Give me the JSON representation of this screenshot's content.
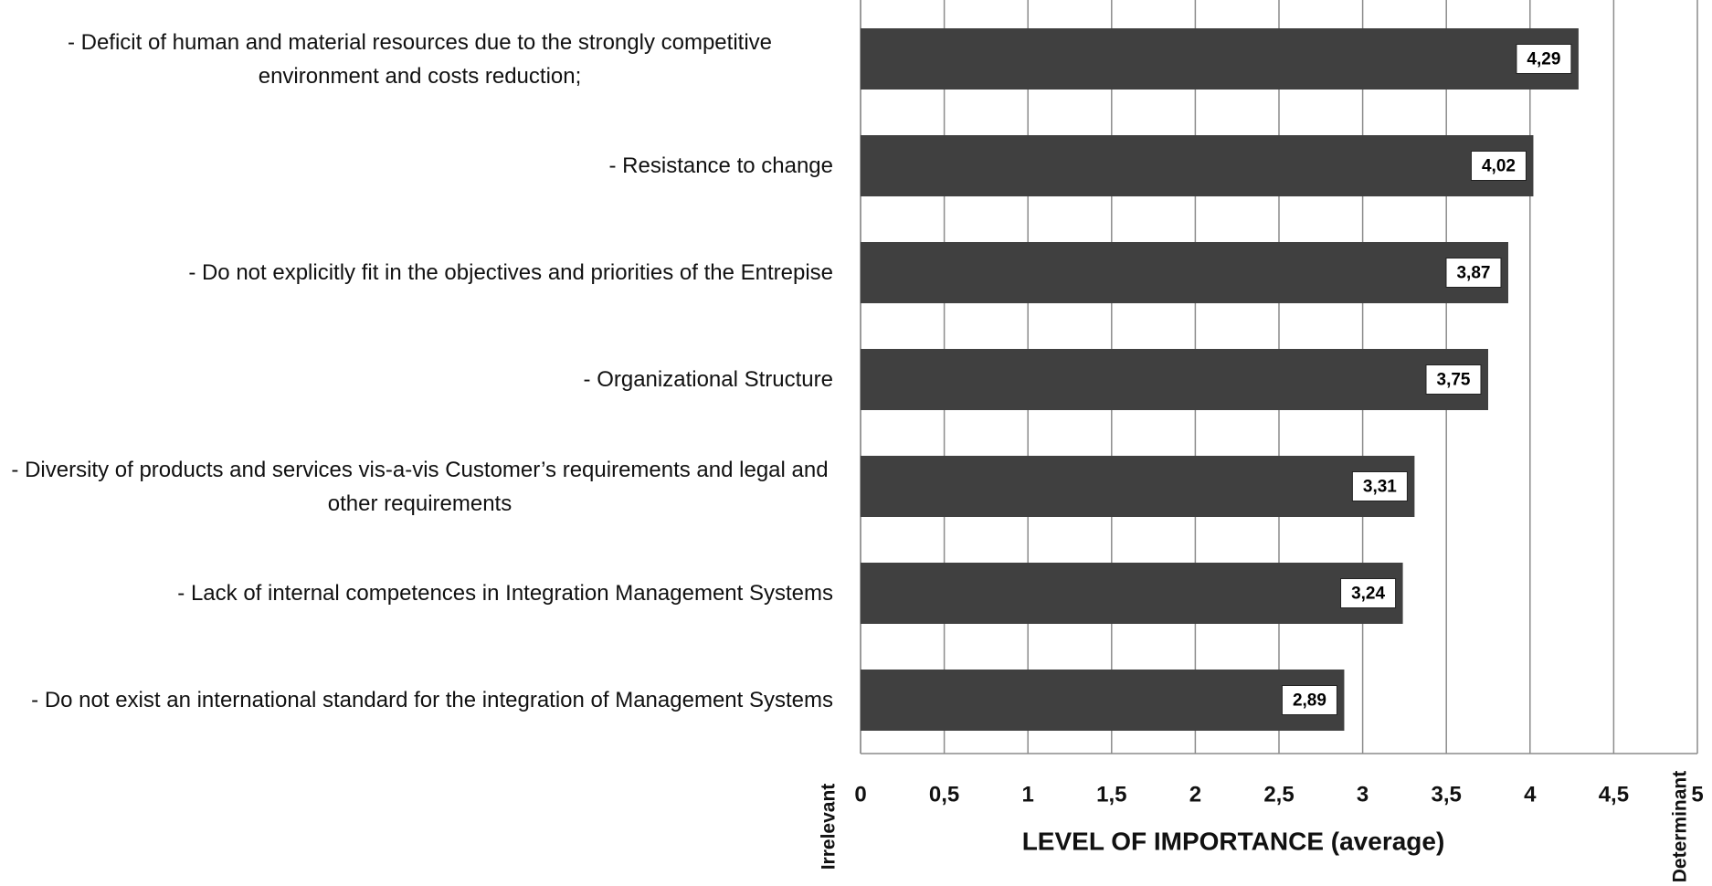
{
  "chart_data": {
    "type": "barh",
    "categories": [
      "- Deficit of human and material resources due to the strongly competitive environment and costs reduction;",
      "- Resistance to change",
      "- Do not explicitly fit in the objectives and priorities of the Entrepise",
      "- Organizational Structure",
      "- Diversity of products and services vis-a-vis Customer’s requirements and legal and other requirements",
      "- Lack of internal competences in Integration Management Systems",
      "- Do not exist an international standard for the integration of Management Systems"
    ],
    "values": [
      4.29,
      4.02,
      3.87,
      3.75,
      3.31,
      3.24,
      2.89
    ],
    "value_labels": [
      "4,29",
      "4,02",
      "3,87",
      "3,75",
      "3,31",
      "3,24",
      "2,89"
    ],
    "color": "#404040",
    "xlabel": "LEVEL OF IMPORTANCE (average)",
    "xlim": [
      0,
      5
    ],
    "xticks": [
      0,
      {
        "value": 0.5,
        "label": "0,5"
      },
      1,
      {
        "value": 1.5,
        "label": "1,5"
      },
      2,
      {
        "value": 2.5,
        "label": "2,5"
      },
      3,
      {
        "value": 3.5,
        "label": "3,5"
      },
      4,
      {
        "value": 4.5,
        "label": "4,5"
      },
      5
    ],
    "x_start_label": "Irrelevant",
    "x_end_label": "Determinant",
    "grid": true
  }
}
